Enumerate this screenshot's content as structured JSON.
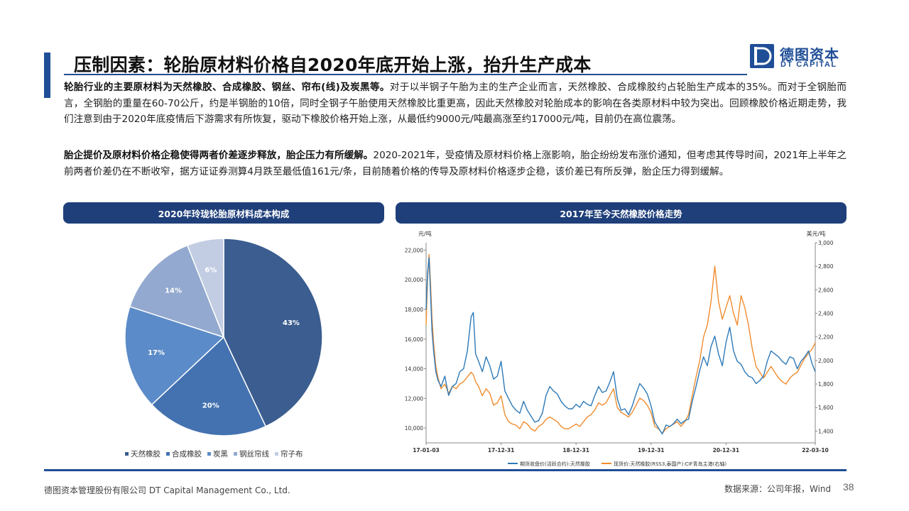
{
  "header": {
    "title": "压制因素：轮胎原材料价格自2020年底开始上涨，抬升生产成本",
    "logo_cn": "德图资本",
    "logo_en": "DT CAPITAL",
    "logo_mark": "D"
  },
  "paragraphs": [
    {
      "lead": "轮胎行业的主要原材料为天然橡胶、合成橡胶、钢丝、帘布(线)及炭黑等。",
      "body": "对于以半钢子午胎为主的生产企业而言，天然橡胶、合成橡胶约占轮胎生产成本的35%。而对于全钢胎而言，全钢胎的重量在60-70公斤，约是半钢胎的10倍，同时全钢子午胎使用天然橡胶比重更高，因此天然橡胶对轮胎成本的影响在各类原材料中较为突出。回顾橡胶价格近期走势，我们注意到由于2020年底疫情后下游需求有所恢复，驱动下橡胶价格开始上涨，从最低约9000元/吨最高涨至约17000元/吨，目前仍在高位震荡。"
    },
    {
      "lead": "胎企提价及原材料价格企稳使得两者价差逐步释放，胎企压力有所缓解。",
      "body": "2020-2021年，受疫情及原材料价格上涨影响，胎企纷纷发布涨价通知，但考虑其传导时间，2021年上半年之前两者价差仍在不断收窄，据方证证券测算4月跌至最低值161元/条，目前随着价格的传导及原材料价格逐步企稳，该价差已有所反弹，胎企压力得到缓解。"
    }
  ],
  "panels": {
    "left_title": "2020年玲珑轮胎原材料成本构成",
    "right_title": "2017年至今天然橡胶价格走势"
  },
  "chart_data": [
    {
      "type": "pie",
      "title": "2020年玲珑轮胎原材料成本构成",
      "categories": [
        "天然橡胶",
        "合成橡胶",
        "炭黑",
        "钢丝帘线",
        "帘子布"
      ],
      "values": [
        43,
        20,
        17,
        14,
        6
      ],
      "value_labels": [
        "43%",
        "20%",
        "17%",
        "14%",
        "6%"
      ],
      "colors": [
        "#3b5d8f",
        "#4472b0",
        "#5b8bc8",
        "#93a9cf",
        "#c2cde3"
      ],
      "legend": "bottom"
    },
    {
      "type": "line",
      "title": "2017年至今天然橡胶价格走势",
      "y_unit_left": "元/吨",
      "y_unit_right": "美元/吨",
      "ylim_left": [
        9000,
        22500
      ],
      "ylim_right": [
        1300,
        3000
      ],
      "yticks_left": [
        "10,000",
        "12,000",
        "14,000",
        "16,000",
        "18,000",
        "20,000",
        "22,000"
      ],
      "yticks_left_values": [
        10000,
        12000,
        14000,
        16000,
        18000,
        20000,
        22000
      ],
      "yticks_right": [
        "1,400",
        "1,600",
        "1,800",
        "2,000",
        "2,200",
        "2,400",
        "2,600",
        "2,800",
        "3,000"
      ],
      "yticks_right_values": [
        1400,
        1600,
        1800,
        2000,
        2200,
        2400,
        2600,
        2800,
        3000
      ],
      "xticks": [
        "17-01-03",
        "17-12-31",
        "18-12-31",
        "19-12-31",
        "20-12-31",
        "22-03-10"
      ],
      "xtick_positions": [
        2017.0,
        2018.0,
        2019.0,
        2020.0,
        2021.0,
        2022.19
      ],
      "xlim": [
        2017.0,
        2022.19
      ],
      "series": [
        {
          "name": "期货收盘价(活跃合约):天然橡胶",
          "axis": "left",
          "color": "#2e7ab8",
          "x": [
            2017.0,
            2017.02,
            2017.04,
            2017.06,
            2017.08,
            2017.1,
            2017.13,
            2017.16,
            2017.2,
            2017.25,
            2017.3,
            2017.35,
            2017.4,
            2017.45,
            2017.5,
            2017.55,
            2017.6,
            2017.63,
            2017.66,
            2017.7,
            2017.75,
            2017.8,
            2017.85,
            2017.9,
            2017.95,
            2018.0,
            2018.05,
            2018.1,
            2018.15,
            2018.2,
            2018.25,
            2018.3,
            2018.35,
            2018.4,
            2018.45,
            2018.5,
            2018.55,
            2018.6,
            2018.65,
            2018.7,
            2018.75,
            2018.8,
            2018.85,
            2018.9,
            2018.95,
            2019.0,
            2019.05,
            2019.1,
            2019.15,
            2019.2,
            2019.25,
            2019.3,
            2019.35,
            2019.4,
            2019.45,
            2019.5,
            2019.55,
            2019.6,
            2019.65,
            2019.7,
            2019.75,
            2019.8,
            2019.85,
            2019.9,
            2019.95,
            2020.0,
            2020.05,
            2020.1,
            2020.15,
            2020.2,
            2020.25,
            2020.3,
            2020.35,
            2020.4,
            2020.45,
            2020.5,
            2020.55,
            2020.6,
            2020.65,
            2020.7,
            2020.75,
            2020.8,
            2020.85,
            2020.9,
            2020.95,
            2021.0,
            2021.05,
            2021.1,
            2021.15,
            2021.2,
            2021.25,
            2021.3,
            2021.35,
            2021.4,
            2021.45,
            2021.5,
            2021.55,
            2021.6,
            2021.65,
            2021.7,
            2021.75,
            2021.8,
            2021.85,
            2021.9,
            2021.95,
            2022.0,
            2022.05,
            2022.1,
            2022.15,
            2022.19
          ],
          "y": [
            18000,
            20500,
            21500,
            19000,
            16500,
            15200,
            13800,
            13200,
            12800,
            13500,
            12200,
            12800,
            13000,
            13800,
            14000,
            15200,
            17500,
            17800,
            15000,
            14500,
            13800,
            14800,
            14200,
            13300,
            13500,
            14500,
            12500,
            12000,
            11500,
            11200,
            11000,
            11800,
            11200,
            10800,
            10400,
            10500,
            11000,
            12200,
            12800,
            12500,
            12300,
            11800,
            11500,
            11300,
            11300,
            11600,
            11400,
            11800,
            11600,
            11500,
            12200,
            12800,
            12400,
            12500,
            13100,
            13800,
            12000,
            11200,
            11300,
            10900,
            11500,
            12300,
            13000,
            12700,
            12300,
            11500,
            10400,
            10000,
            9600,
            10200,
            10100,
            10300,
            10600,
            10300,
            10500,
            10600,
            11800,
            12800,
            13900,
            14800,
            14200,
            15500,
            16200,
            15000,
            14200,
            15800,
            16800,
            15200,
            14500,
            14300,
            13800,
            13500,
            13400,
            13000,
            13200,
            13500,
            14500,
            15200,
            15000,
            14800,
            14500,
            14300,
            14800,
            14700,
            14000,
            14500,
            14800,
            15200,
            14300,
            13800
          ],
          "y2": null
        },
        {
          "name": "现货价:天然橡胶(RSS3,泰国产):CIF青岛主港(右轴)",
          "axis": "right",
          "color": "#f08c2e",
          "x": [
            2017.0,
            2017.02,
            2017.04,
            2017.06,
            2017.08,
            2017.1,
            2017.13,
            2017.16,
            2017.2,
            2017.25,
            2017.3,
            2017.35,
            2017.4,
            2017.45,
            2017.5,
            2017.55,
            2017.6,
            2017.63,
            2017.66,
            2017.7,
            2017.75,
            2017.8,
            2017.85,
            2017.9,
            2017.95,
            2018.0,
            2018.05,
            2018.1,
            2018.15,
            2018.2,
            2018.25,
            2018.3,
            2018.35,
            2018.4,
            2018.45,
            2018.5,
            2018.55,
            2018.6,
            2018.65,
            2018.7,
            2018.75,
            2018.8,
            2018.85,
            2018.9,
            2018.95,
            2019.0,
            2019.05,
            2019.1,
            2019.15,
            2019.2,
            2019.25,
            2019.3,
            2019.35,
            2019.4,
            2019.45,
            2019.5,
            2019.55,
            2019.6,
            2019.65,
            2019.7,
            2019.75,
            2019.8,
            2019.85,
            2019.9,
            2019.95,
            2020.0,
            2020.05,
            2020.1,
            2020.15,
            2020.2,
            2020.25,
            2020.3,
            2020.35,
            2020.4,
            2020.45,
            2020.5,
            2020.55,
            2020.6,
            2020.65,
            2020.7,
            2020.75,
            2020.8,
            2020.85,
            2020.9,
            2020.95,
            2021.0,
            2021.05,
            2021.1,
            2021.15,
            2021.2,
            2021.25,
            2021.3,
            2021.35,
            2021.4,
            2021.45,
            2021.5,
            2021.55,
            2021.6,
            2021.65,
            2021.7,
            2021.75,
            2021.8,
            2021.85,
            2021.9,
            2021.95,
            2022.0,
            2022.05,
            2022.1,
            2022.15,
            2022.19
          ],
          "y": [
            2300,
            2700,
            2900,
            2650,
            2350,
            2150,
            1950,
            1850,
            1760,
            1800,
            1720,
            1780,
            1760,
            1800,
            1820,
            1860,
            1900,
            1880,
            1820,
            1780,
            1700,
            1760,
            1720,
            1620,
            1640,
            1700,
            1540,
            1480,
            1460,
            1450,
            1420,
            1480,
            1460,
            1420,
            1400,
            1440,
            1460,
            1500,
            1520,
            1500,
            1480,
            1440,
            1420,
            1420,
            1440,
            1460,
            1440,
            1480,
            1520,
            1540,
            1580,
            1640,
            1620,
            1640,
            1700,
            1760,
            1600,
            1560,
            1540,
            1520,
            1560,
            1620,
            1680,
            1660,
            1620,
            1560,
            1440,
            1420,
            1380,
            1420,
            1440,
            1460,
            1480,
            1440,
            1480,
            1540,
            1700,
            1860,
            2000,
            2200,
            2300,
            2500,
            2800,
            2500,
            2350,
            2450,
            2550,
            2400,
            2300,
            2550,
            2450,
            2300,
            2100,
            1950,
            1900,
            1850,
            1900,
            1950,
            1900,
            1850,
            1820,
            1800,
            1850,
            1880,
            1900,
            1960,
            2020,
            2060,
            2100,
            2150
          ]
        }
      ],
      "legend": "bottom"
    }
  ],
  "footer": {
    "company": "德图资本管理股份有限公司  DT Capital Management  Co., Ltd.",
    "source": "数据来源：公司年报，Wind",
    "page": "38"
  }
}
